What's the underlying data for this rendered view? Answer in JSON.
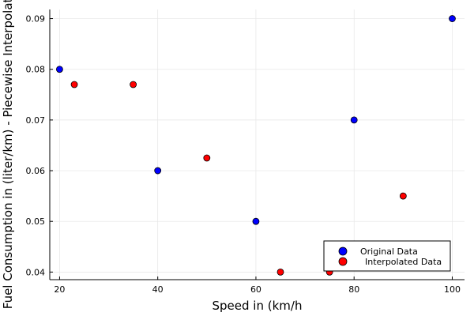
{
  "chart_data": {
    "type": "scatter",
    "xlabel": "Speed in (km/h",
    "ylabel": "Fuel Consumption in (liter/km) - Piecewise Interpolation",
    "xlim": [
      18,
      102.5
    ],
    "ylim": [
      0.0385,
      0.0918
    ],
    "xticks": [
      20,
      40,
      60,
      80,
      100
    ],
    "xtick_labels": [
      "20",
      "40",
      "60",
      "80",
      "100"
    ],
    "yticks": [
      0.04,
      0.05,
      0.06,
      0.07,
      0.08,
      0.09
    ],
    "ytick_labels": [
      "0.04",
      "0.05",
      "0.06",
      "0.07",
      "0.08",
      "0.09"
    ],
    "grid": true,
    "legend_position": "bottom-right",
    "series": [
      {
        "name": "Original Data",
        "color": "#0000ff",
        "points": [
          {
            "x": 20,
            "y": 0.08
          },
          {
            "x": 40,
            "y": 0.06
          },
          {
            "x": 60,
            "y": 0.05
          },
          {
            "x": 80,
            "y": 0.07
          },
          {
            "x": 100,
            "y": 0.09
          }
        ]
      },
      {
        "name": "Interpolated Data",
        "color": "#ff0000",
        "points": [
          {
            "x": 23,
            "y": 0.077
          },
          {
            "x": 35,
            "y": 0.077
          },
          {
            "x": 50,
            "y": 0.0625
          },
          {
            "x": 65,
            "y": 0.04
          },
          {
            "x": 75,
            "y": 0.04
          },
          {
            "x": 90,
            "y": 0.055
          }
        ]
      }
    ]
  }
}
